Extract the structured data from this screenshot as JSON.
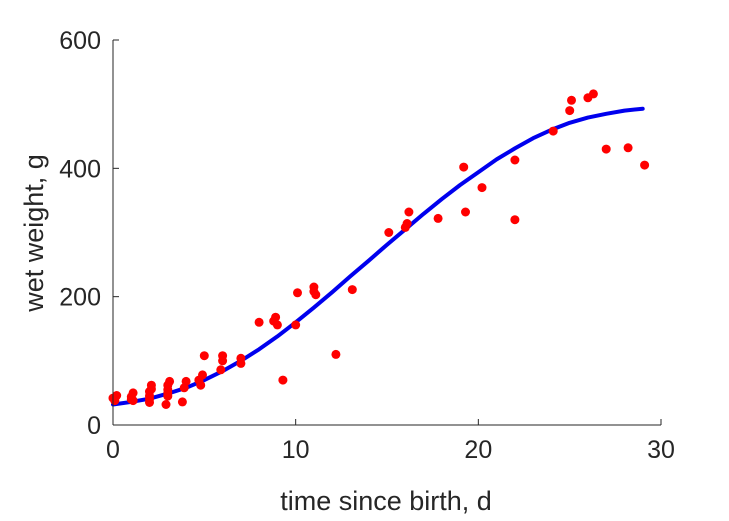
{
  "chart_data": {
    "type": "scatter",
    "xlabel": "time since birth, d",
    "ylabel": "wet weight, g",
    "xlim": [
      0,
      30
    ],
    "ylim": [
      0,
      600
    ],
    "xticks": [
      0,
      10,
      20,
      30
    ],
    "yticks": [
      0,
      200,
      400,
      600
    ],
    "grid": false,
    "legend": "none",
    "series": [
      {
        "kind": "points",
        "color": "#ff0000",
        "points": [
          [
            0.0,
            42
          ],
          [
            0.1,
            38
          ],
          [
            0.2,
            46
          ],
          [
            1.0,
            40
          ],
          [
            1.0,
            44
          ],
          [
            1.1,
            50
          ],
          [
            1.1,
            38
          ],
          [
            2.0,
            35
          ],
          [
            2.0,
            40
          ],
          [
            2.0,
            45
          ],
          [
            2.0,
            52
          ],
          [
            2.1,
            62
          ],
          [
            2.1,
            56
          ],
          [
            2.9,
            32
          ],
          [
            3.0,
            50
          ],
          [
            3.0,
            55
          ],
          [
            3.0,
            62
          ],
          [
            3.0,
            45
          ],
          [
            3.1,
            68
          ],
          [
            3.8,
            36
          ],
          [
            3.9,
            58
          ],
          [
            4.0,
            68
          ],
          [
            4.7,
            70
          ],
          [
            4.8,
            62
          ],
          [
            4.9,
            78
          ],
          [
            5.0,
            108
          ],
          [
            5.9,
            86
          ],
          [
            6.0,
            100
          ],
          [
            6.0,
            108
          ],
          [
            7.0,
            96
          ],
          [
            7.0,
            104
          ],
          [
            8.0,
            160
          ],
          [
            8.8,
            162
          ],
          [
            8.9,
            168
          ],
          [
            9.0,
            156
          ],
          [
            9.3,
            70
          ],
          [
            10.0,
            156
          ],
          [
            10.1,
            206
          ],
          [
            11.0,
            208
          ],
          [
            11.0,
            215
          ],
          [
            11.1,
            203
          ],
          [
            12.2,
            110
          ],
          [
            13.1,
            211
          ],
          [
            15.1,
            300
          ],
          [
            16.0,
            308
          ],
          [
            16.1,
            314
          ],
          [
            16.2,
            332
          ],
          [
            17.8,
            322
          ],
          [
            19.2,
            402
          ],
          [
            19.3,
            332
          ],
          [
            20.2,
            370
          ],
          [
            22.0,
            320
          ],
          [
            22.0,
            413
          ],
          [
            24.1,
            458
          ],
          [
            25.0,
            490
          ],
          [
            25.1,
            506
          ],
          [
            26.0,
            510
          ],
          [
            26.3,
            516
          ],
          [
            27.0,
            430
          ],
          [
            28.2,
            432
          ],
          [
            29.1,
            405
          ]
        ]
      },
      {
        "kind": "curve",
        "color": "#0000ee",
        "points": [
          [
            0,
            32
          ],
          [
            1,
            36
          ],
          [
            2,
            41
          ],
          [
            3,
            49
          ],
          [
            4,
            58
          ],
          [
            5,
            70
          ],
          [
            6,
            84
          ],
          [
            7,
            100
          ],
          [
            8,
            118
          ],
          [
            9,
            138
          ],
          [
            10,
            160
          ],
          [
            11,
            183
          ],
          [
            12,
            207
          ],
          [
            13,
            232
          ],
          [
            14,
            256
          ],
          [
            15,
            281
          ],
          [
            16,
            305
          ],
          [
            17,
            329
          ],
          [
            18,
            352
          ],
          [
            19,
            374
          ],
          [
            20,
            394
          ],
          [
            21,
            414
          ],
          [
            22,
            431
          ],
          [
            23,
            447
          ],
          [
            24,
            460
          ],
          [
            25,
            471
          ],
          [
            26,
            479
          ],
          [
            27,
            485
          ],
          [
            28,
            490
          ],
          [
            29,
            493
          ]
        ]
      }
    ]
  }
}
